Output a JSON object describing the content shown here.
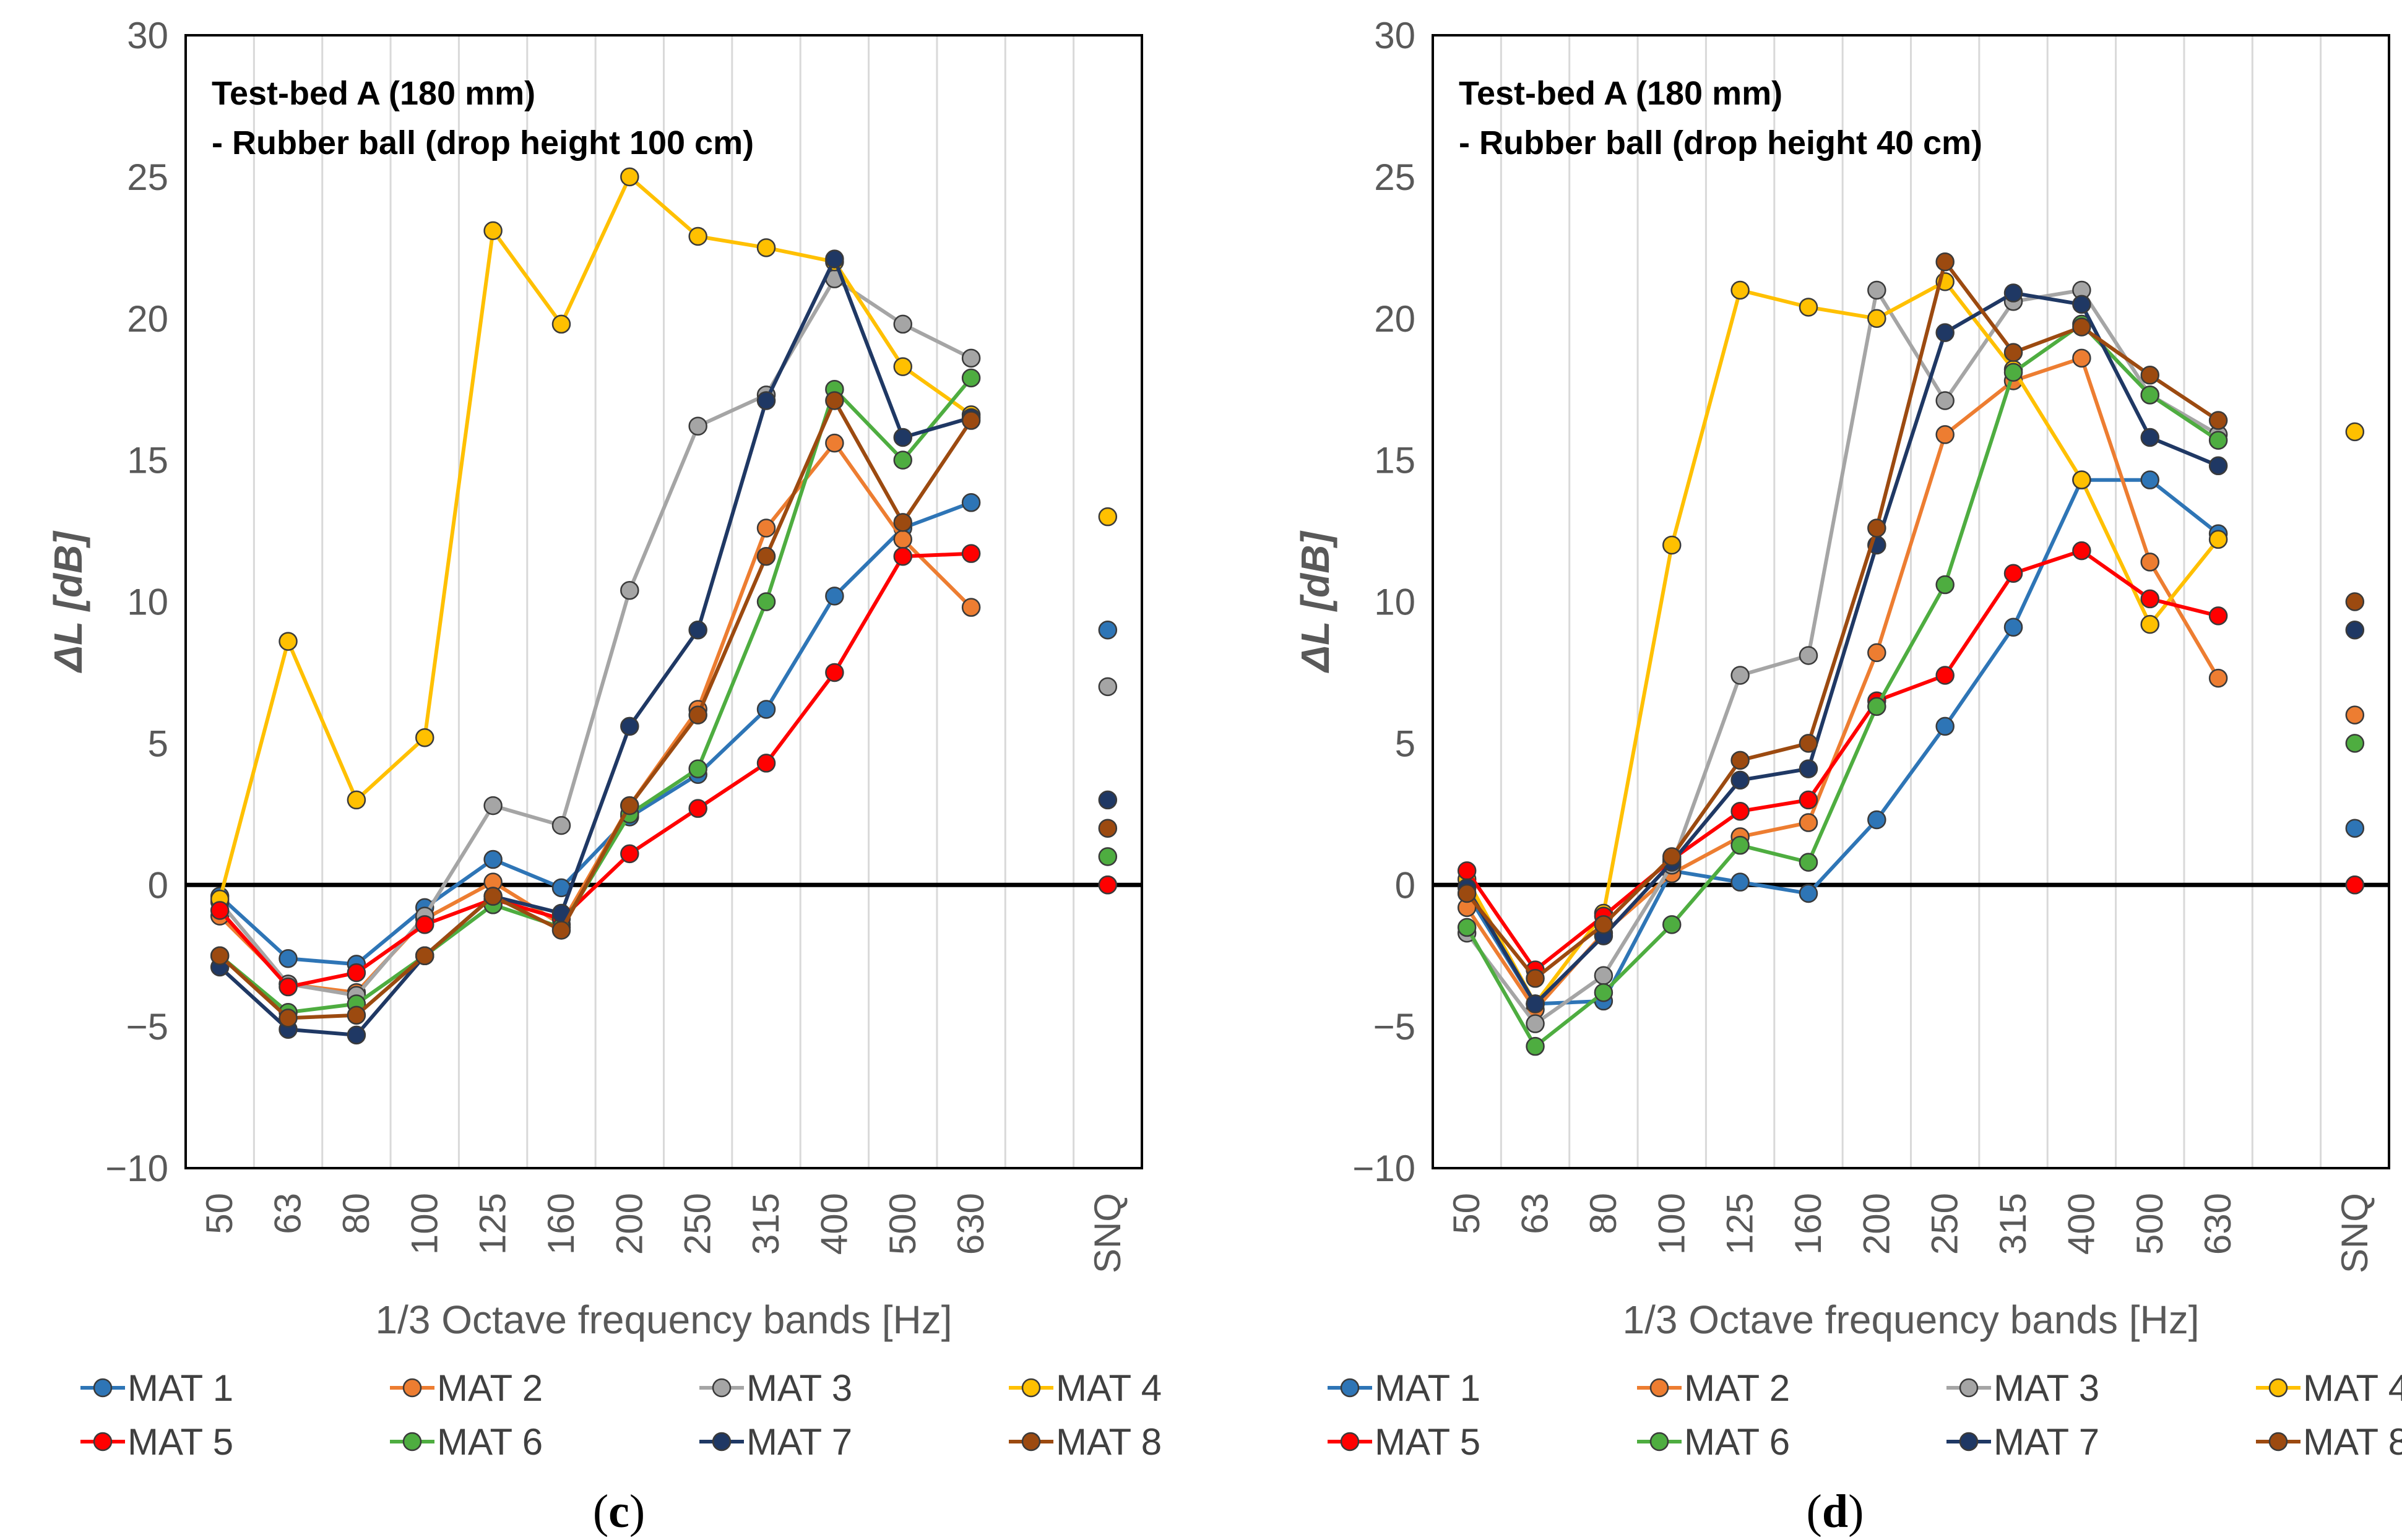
{
  "chart_data": [
    {
      "type": "line",
      "panel_label": "(c)",
      "annotation": [
        "Test-bed A (180 mm)",
        "- Rubber ball (drop height 100 cm)"
      ],
      "ylabel": "ΔL [dB]",
      "xlabel": "1/3 Octave frequency bands [Hz]",
      "ylim": [
        -10,
        30
      ],
      "yticks": [
        "−10",
        "−5",
        "0",
        "5",
        "10",
        "15",
        "20",
        "25",
        "30"
      ],
      "categories": [
        "50",
        "63",
        "80",
        "100",
        "125",
        "160",
        "200",
        "250",
        "315",
        "400",
        "500",
        "630"
      ],
      "extra_category": "SNQ",
      "grid": true,
      "series": [
        {
          "name": "MAT 1",
          "color": "#2E75B6",
          "values": [
            -0.4,
            -2.6,
            -2.8,
            -0.8,
            0.9,
            -0.1,
            2.4,
            3.9,
            6.2,
            10.2,
            12.6,
            13.5
          ],
          "snq": 9
        },
        {
          "name": "MAT 2",
          "color": "#ED7D31",
          "values": [
            -1.1,
            -3.5,
            -3.8,
            -1.2,
            0.1,
            -1.4,
            2.8,
            6.2,
            12.6,
            15.6,
            12.2,
            9.8
          ],
          "snq": 0
        },
        {
          "name": "MAT 3",
          "color": "#A5A5A5",
          "values": [
            -0.6,
            -3.5,
            -3.9,
            -1.1,
            2.8,
            2.1,
            10.4,
            16.2,
            17.3,
            21.4,
            19.8,
            18.6
          ],
          "snq": 7
        },
        {
          "name": "MAT 4",
          "color": "#FFC000",
          "values": [
            -0.5,
            8.6,
            3.0,
            5.2,
            23.1,
            19.8,
            25.0,
            22.9,
            22.5,
            22.0,
            18.3,
            16.6
          ],
          "snq": 13
        },
        {
          "name": "MAT 5",
          "color": "#FF0000",
          "values": [
            -0.9,
            -3.6,
            -3.1,
            -1.4,
            -0.5,
            -1.2,
            1.1,
            2.7,
            4.3,
            7.5,
            11.6,
            11.7
          ],
          "snq": 0
        },
        {
          "name": "MAT 6",
          "color": "#4EAD40",
          "values": [
            -2.5,
            -4.5,
            -4.2,
            -2.5,
            -0.7,
            -1.5,
            2.5,
            4.1,
            10.0,
            17.5,
            15.0,
            17.9
          ],
          "snq": 1
        },
        {
          "name": "MAT 7",
          "color": "#1F3864",
          "values": [
            -2.9,
            -5.1,
            -5.3,
            -2.5,
            -0.4,
            -1.0,
            5.6,
            9.0,
            17.1,
            22.1,
            15.8,
            16.5
          ],
          "snq": 3
        },
        {
          "name": "MAT 8",
          "color": "#9C4A10",
          "values": [
            -2.5,
            -4.7,
            -4.6,
            -2.5,
            -0.4,
            -1.6,
            2.8,
            6.0,
            11.6,
            17.1,
            12.8,
            16.4
          ],
          "snq": 2
        }
      ]
    },
    {
      "type": "line",
      "panel_label": "(d)",
      "annotation": [
        "Test-bed A (180 mm)",
        "- Rubber ball (drop height 40 cm)"
      ],
      "ylabel": "ΔL [dB]",
      "xlabel": "1/3 Octave frequency bands [Hz]",
      "ylim": [
        -10,
        30
      ],
      "yticks": [
        "−10",
        "−5",
        "0",
        "5",
        "10",
        "15",
        "20",
        "25",
        "30"
      ],
      "categories": [
        "50",
        "63",
        "80",
        "100",
        "125",
        "160",
        "200",
        "250",
        "315",
        "400",
        "500",
        "630"
      ],
      "extra_category": "SNQ",
      "grid": true,
      "series": [
        {
          "name": "MAT 1",
          "color": "#2E75B6",
          "values": [
            -0.3,
            -4.2,
            -4.1,
            0.5,
            0.1,
            -0.3,
            2.3,
            5.6,
            9.1,
            14.3,
            14.3,
            12.4
          ],
          "snq": 2
        },
        {
          "name": "MAT 2",
          "color": "#ED7D31",
          "values": [
            -0.8,
            -4.4,
            -1.7,
            0.4,
            1.7,
            2.2,
            8.2,
            15.9,
            17.8,
            18.6,
            11.4,
            7.3
          ],
          "snq": 6
        },
        {
          "name": "MAT 3",
          "color": "#A5A5A5",
          "values": [
            -1.7,
            -4.9,
            -3.2,
            0.7,
            7.4,
            8.1,
            21.0,
            17.1,
            20.6,
            21.0,
            17.3,
            15.9
          ],
          "snq": 0
        },
        {
          "name": "MAT 4",
          "color": "#FFC000",
          "values": [
            0.2,
            -4.2,
            -1.0,
            12.0,
            21.0,
            20.4,
            20.0,
            21.3,
            18.2,
            14.3,
            9.2,
            12.2
          ],
          "snq": 16
        },
        {
          "name": "MAT 5",
          "color": "#FF0000",
          "values": [
            0.5,
            -3.0,
            -1.1,
            0.9,
            2.6,
            3.0,
            6.5,
            7.4,
            11.0,
            11.8,
            10.1,
            9.5
          ],
          "snq": 0
        },
        {
          "name": "MAT 6",
          "color": "#4EAD40",
          "values": [
            -1.5,
            -5.7,
            -3.8,
            -1.4,
            1.4,
            0.8,
            6.3,
            10.6,
            18.1,
            19.8,
            17.3,
            15.7
          ],
          "snq": 5
        },
        {
          "name": "MAT 7",
          "color": "#1F3864",
          "values": [
            -0.1,
            -4.2,
            -1.8,
            0.8,
            3.7,
            4.1,
            12.0,
            19.5,
            20.9,
            20.5,
            15.8,
            14.8
          ],
          "snq": 9
        },
        {
          "name": "MAT 8",
          "color": "#9C4A10",
          "values": [
            -0.3,
            -3.3,
            -1.4,
            1.0,
            4.4,
            5.0,
            12.6,
            22.0,
            18.8,
            19.7,
            18.0,
            16.4
          ],
          "snq": 10
        }
      ]
    }
  ]
}
